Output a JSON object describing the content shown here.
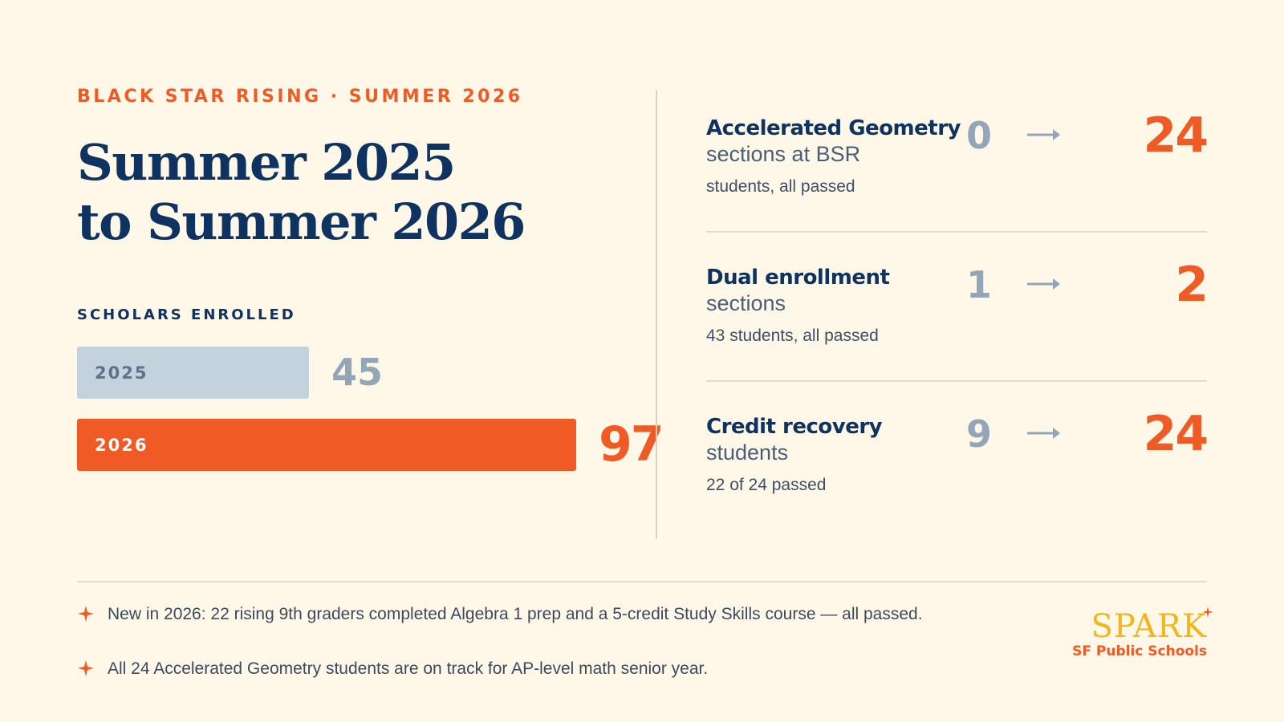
{
  "eyebrow": "BLACK STAR RISING · SUMMER 2026",
  "headline": {
    "line1": "Summer 2025",
    "line2": "to Summer 2026"
  },
  "enrollment": {
    "label": "SCHOLARS ENROLLED",
    "max": 97,
    "bars": [
      {
        "year": "2025",
        "value": 45,
        "color": "#c4d2dd"
      },
      {
        "year": "2026",
        "value": 97,
        "color": "#ef5a25"
      }
    ]
  },
  "metrics": [
    {
      "title": "Accelerated Geometry",
      "subtitle": "sections at BSR",
      "note": "students, all passed",
      "before": "0",
      "after": "24"
    },
    {
      "title": "Dual enrollment",
      "subtitle": "sections",
      "note": "43 students, all passed",
      "before": "1",
      "after": "2"
    },
    {
      "title": "Credit recovery",
      "subtitle": "students",
      "note": "22 of 24 passed",
      "before": "9",
      "after": "24"
    }
  ],
  "notes": [
    "New in 2026: 22 rising 9th graders completed Algebra 1 prep and a 5-credit Study Skills course — all passed.",
    "All 24 Accelerated Geometry students are on track for AP-level math senior year."
  ],
  "brand": {
    "name": "SPARK",
    "subtitle": "SF Public Schools"
  },
  "colors": {
    "background": "#fff8e8",
    "navy": "#0f3361",
    "orange": "#ef5a25",
    "gray": "#93a6b8",
    "gold": "#f3b51b"
  },
  "icons": {
    "arrow": "arrow-right-icon",
    "bullet": "sparkle-star-icon"
  }
}
